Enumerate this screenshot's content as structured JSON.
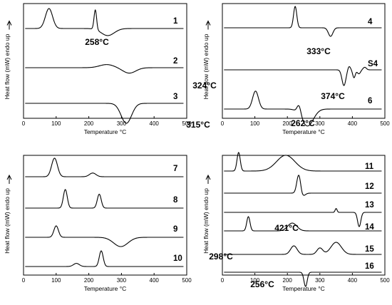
{
  "chart_data": [
    {
      "type": "line",
      "xlabel": "Temperature °C",
      "ylabel": "Heat flow (mW) endo up",
      "xlim": [
        0,
        500
      ],
      "xticks": [
        "0",
        "100",
        "200",
        "300",
        "400",
        "500"
      ],
      "grid": false,
      "series": [
        {
          "name": "1",
          "baseline": 0,
          "peaks": [
            [
              78,
              1,
              11
            ],
            [
              220,
              1,
              4
            ],
            [
              258,
              -0.45,
              20
            ]
          ]
        },
        {
          "name": "2",
          "baseline": 0,
          "peaks": [
            [
              255,
              0.22,
              22
            ],
            [
              324,
              -0.38,
              20
            ]
          ]
        },
        {
          "name": "3",
          "baseline": 0,
          "peaks": [
            [
              315,
              -1,
              16
            ]
          ]
        }
      ],
      "annotations": [
        {
          "text": "258°C",
          "x": 258
        },
        {
          "text": "324°C",
          "x": 324
        },
        {
          "text": "315°C",
          "x": 315
        }
      ]
    },
    {
      "type": "line",
      "xlabel": "Temperature °C",
      "ylabel": "Heat flow (mW) endo up",
      "xlim": [
        0,
        500
      ],
      "xticks": [
        "0",
        "100",
        "200",
        "300",
        "400",
        "500"
      ],
      "grid": false,
      "series": [
        {
          "name": "4",
          "baseline": 0,
          "peaks": [
            [
              224,
              1,
              5
            ],
            [
              333,
              -0.4,
              7
            ]
          ]
        },
        {
          "name": "S4",
          "baseline": 0,
          "peaks": [
            [
              374,
              -1,
              6
            ],
            [
              390,
              0.25,
              4
            ],
            [
              405,
              -0.5,
              4
            ],
            [
              420,
              -0.25,
              5
            ],
            [
              438,
              0.18,
              5
            ]
          ]
        },
        {
          "name": "6",
          "baseline": 0,
          "peaks": [
            [
              102,
              0.9,
              9
            ],
            [
              236,
              0.45,
              6
            ],
            [
              262,
              -0.85,
              18
            ]
          ]
        }
      ],
      "annotations": [
        {
          "text": "333°C",
          "x": 333
        },
        {
          "text": "374°C",
          "x": 374
        },
        {
          "text": "262°C",
          "x": 262
        }
      ]
    },
    {
      "type": "line",
      "xlabel": "Temperature °C",
      "ylabel": "Heat flow (mW) endo up",
      "xlim": [
        0,
        500
      ],
      "xticks": [
        "0",
        "100",
        "200",
        "300",
        "400",
        "500"
      ],
      "grid": false,
      "series": [
        {
          "name": "7",
          "baseline": 0,
          "peaks": [
            [
              95,
              1,
              9
            ],
            [
              212,
              0.2,
              10
            ]
          ]
        },
        {
          "name": "8",
          "baseline": 0,
          "peaks": [
            [
              128,
              1,
              6
            ],
            [
              232,
              0.75,
              6
            ]
          ]
        },
        {
          "name": "9",
          "baseline": 0,
          "peaks": [
            [
              100,
              0.8,
              7
            ],
            [
              298,
              -0.65,
              22
            ]
          ]
        },
        {
          "name": "10",
          "baseline": 0,
          "peaks": [
            [
              162,
              0.2,
              9
            ],
            [
              238,
              1,
              6
            ]
          ]
        }
      ],
      "annotations": [
        {
          "text": "298°C",
          "x": 298
        }
      ]
    },
    {
      "type": "line",
      "xlabel": "Temperature °C",
      "ylabel": "Heat flow (mW) endo up",
      "xlim": [
        0,
        500
      ],
      "xticks": [
        "0",
        "100",
        "200",
        "300",
        "400",
        "500"
      ],
      "grid": false,
      "series": [
        {
          "name": "11",
          "baseline": 0,
          "peaks": [
            [
              50,
              1,
              5
            ],
            [
              195,
              0.85,
              28
            ]
          ]
        },
        {
          "name": "12",
          "baseline": 0,
          "peaks": [
            [
              235,
              1,
              6
            ],
            [
              248,
              -0.2,
              7
            ]
          ]
        },
        {
          "name": "13",
          "baseline": 0,
          "peaks": [
            [
              350,
              0.45,
              3
            ],
            [
              421,
              -1,
              5
            ]
          ]
        },
        {
          "name": "14",
          "baseline": 0,
          "peaks": [
            [
              80,
              1,
              5
            ],
            [
              215,
              0.55,
              14
            ]
          ]
        },
        {
          "name": "15",
          "baseline": 0,
          "peaks": [
            [
              220,
              0.6,
              10
            ],
            [
              300,
              0.45,
              9
            ],
            [
              350,
              0.85,
              16
            ]
          ]
        },
        {
          "name": "16",
          "baseline": 0,
          "peaks": [
            [
              256,
              -1,
              5
            ]
          ]
        }
      ],
      "annotations": [
        {
          "text": "421°C",
          "x": 421
        },
        {
          "text": "256°C",
          "x": 256
        }
      ]
    }
  ]
}
